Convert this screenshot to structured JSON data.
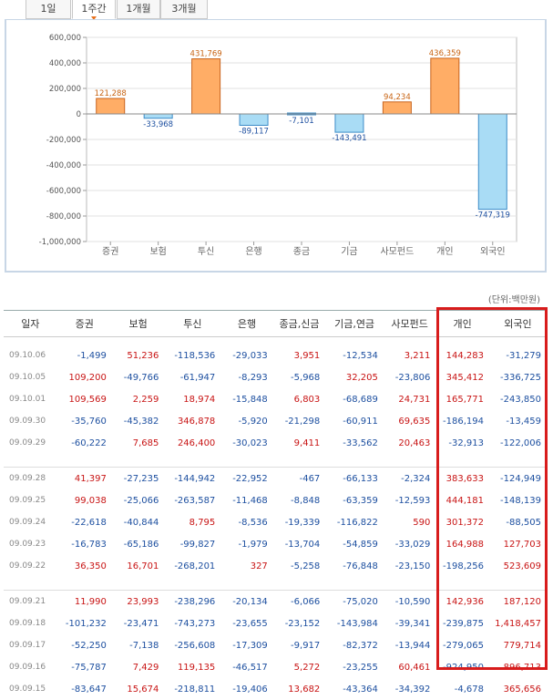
{
  "tabs": [
    {
      "label": "1일",
      "active": false
    },
    {
      "label": "1주간",
      "active": true
    },
    {
      "label": "1개월",
      "active": false
    },
    {
      "label": "3개월",
      "active": false
    }
  ],
  "chart_data": {
    "type": "bar",
    "categories": [
      "증권",
      "보험",
      "투신",
      "은행",
      "종금",
      "기금",
      "사모펀드",
      "개인",
      "외국인"
    ],
    "values": [
      121288,
      -33968,
      431769,
      -89117,
      -7101,
      -143491,
      94234,
      436359,
      -747319
    ],
    "value_labels": [
      "121,288",
      "-33,968",
      "431,769",
      "-89,117",
      "-7,101",
      "-143,491",
      "94,234",
      "436,359",
      "-747,319"
    ],
    "ylim": [
      -1000000,
      600000
    ],
    "yticks": [
      "600,000",
      "400,000",
      "200,000",
      "0",
      "-200,000",
      "-400,000",
      "-600,000",
      "-800,000",
      "-1,000,000"
    ],
    "ytick_values": [
      600000,
      400000,
      200000,
      0,
      -200000,
      -400000,
      -600000,
      -800000,
      -1000000
    ],
    "grid": true,
    "colors": {
      "positive_fill": "#ffad66",
      "positive_stroke": "#c8641e",
      "negative_fill": "#a9dcf5",
      "negative_stroke": "#3c8cc8",
      "positive_label": "#c86414",
      "negative_label": "#1e50a0"
    }
  },
  "unit_label": "(단위:백만원)",
  "table": {
    "headers": [
      "일자",
      "증권",
      "보험",
      "투신",
      "은행",
      "종금,신금",
      "기금,연금",
      "사모펀드",
      "개인",
      "외국인"
    ],
    "groups": [
      [
        [
          "09.10.06",
          "-1,499",
          "51,236",
          "-118,536",
          "-29,033",
          "3,951",
          "-12,534",
          "3,211",
          "144,283",
          "-31,279"
        ],
        [
          "09.10.05",
          "109,200",
          "-49,766",
          "-61,947",
          "-8,293",
          "-5,968",
          "32,205",
          "-23,806",
          "345,412",
          "-336,725"
        ],
        [
          "09.10.01",
          "109,569",
          "2,259",
          "18,974",
          "-15,848",
          "6,803",
          "-68,689",
          "24,731",
          "165,771",
          "-243,850"
        ],
        [
          "09.09.30",
          "-35,760",
          "-45,382",
          "346,878",
          "-5,920",
          "-21,298",
          "-60,911",
          "69,635",
          "-186,194",
          "-13,459"
        ],
        [
          "09.09.29",
          "-60,222",
          "7,685",
          "246,400",
          "-30,023",
          "9,411",
          "-33,562",
          "20,463",
          "-32,913",
          "-122,006"
        ]
      ],
      [
        [
          "09.09.28",
          "41,397",
          "-27,235",
          "-144,942",
          "-22,952",
          "-467",
          "-66,133",
          "-2,324",
          "383,633",
          "-124,949"
        ],
        [
          "09.09.25",
          "99,038",
          "-25,066",
          "-263,587",
          "-11,468",
          "-8,848",
          "-63,359",
          "-12,593",
          "444,181",
          "-148,139"
        ],
        [
          "09.09.24",
          "-22,618",
          "-40,844",
          "8,795",
          "-8,536",
          "-19,339",
          "-116,822",
          "590",
          "301,372",
          "-88,505"
        ],
        [
          "09.09.23",
          "-16,783",
          "-65,186",
          "-99,827",
          "-1,979",
          "-13,704",
          "-54,859",
          "-33,029",
          "164,988",
          "127,703"
        ],
        [
          "09.09.22",
          "36,350",
          "16,701",
          "-268,201",
          "327",
          "-5,258",
          "-76,848",
          "-23,150",
          "-198,256",
          "523,609"
        ]
      ],
      [
        [
          "09.09.21",
          "11,990",
          "23,993",
          "-238,296",
          "-20,134",
          "-6,066",
          "-75,020",
          "-10,590",
          "142,936",
          "187,120"
        ],
        [
          "09.09.18",
          "-101,232",
          "-23,471",
          "-743,273",
          "-23,655",
          "-23,152",
          "-143,984",
          "-39,341",
          "-239,875",
          "1,418,457"
        ],
        [
          "09.09.17",
          "-52,250",
          "-7,138",
          "-256,608",
          "-17,309",
          "-9,917",
          "-82,372",
          "-13,944",
          "-279,065",
          "779,714"
        ],
        [
          "09.09.16",
          "-75,787",
          "7,429",
          "119,135",
          "-46,517",
          "5,272",
          "-23,255",
          "60,461",
          "-924,950",
          "896,713"
        ],
        [
          "09.09.15",
          "-83,647",
          "15,674",
          "-218,811",
          "-19,406",
          "13,682",
          "-43,364",
          "-34,392",
          "-4,678",
          "365,656"
        ]
      ]
    ]
  }
}
